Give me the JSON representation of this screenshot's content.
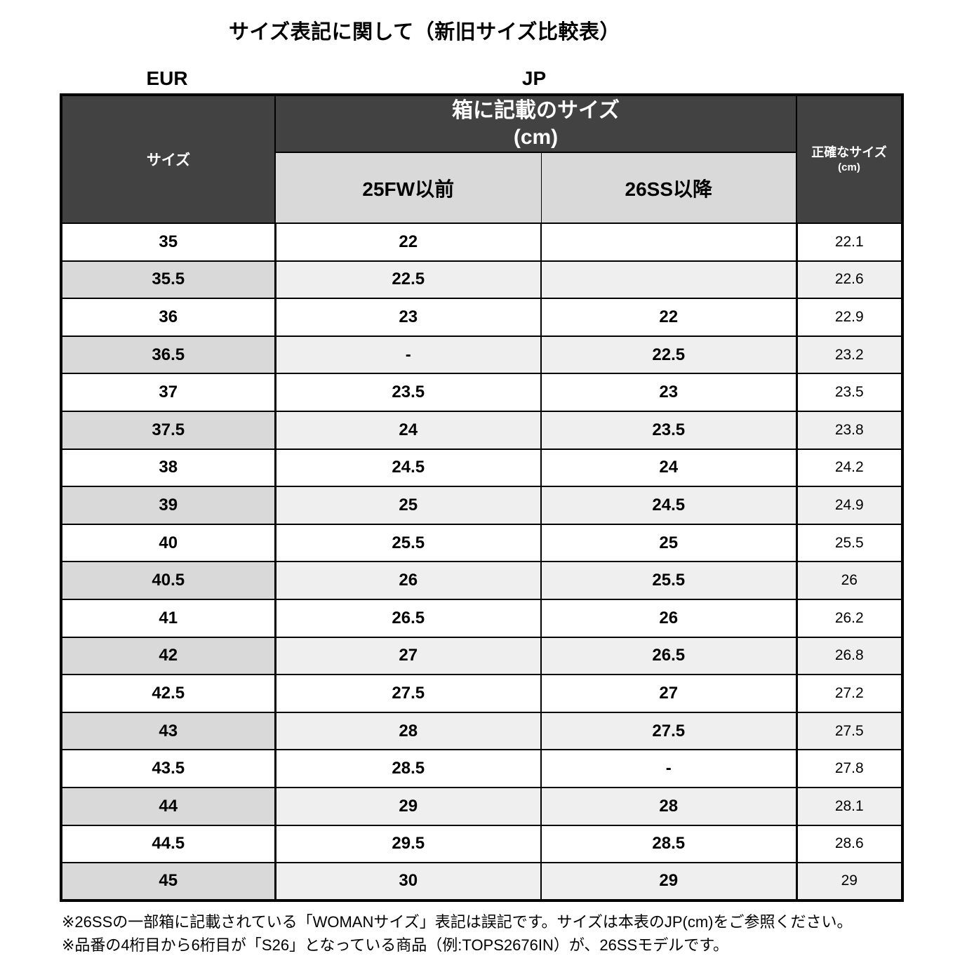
{
  "page": {
    "title": "サイズ表記に関して（新旧サイズ比較表）"
  },
  "group_labels": {
    "eur": "EUR",
    "jp": "JP"
  },
  "table": {
    "headers": {
      "size": "サイズ",
      "box_size_line1": "箱に記載のサイズ",
      "box_size_line2": "(cm)",
      "col_25fw": "25FW以前",
      "col_26ss": "26SS以降",
      "exact_line1": "正確なサイズ",
      "exact_line2": "(cm)"
    },
    "rows": [
      {
        "eur": "35",
        "fw25": "22",
        "ss26": "",
        "exact": "22.1"
      },
      {
        "eur": "35.5",
        "fw25": "22.5",
        "ss26": "",
        "exact": "22.6"
      },
      {
        "eur": "36",
        "fw25": "23",
        "ss26": "22",
        "exact": "22.9"
      },
      {
        "eur": "36.5",
        "fw25": "-",
        "ss26": "22.5",
        "exact": "23.2"
      },
      {
        "eur": "37",
        "fw25": "23.5",
        "ss26": "23",
        "exact": "23.5"
      },
      {
        "eur": "37.5",
        "fw25": "24",
        "ss26": "23.5",
        "exact": "23.8"
      },
      {
        "eur": "38",
        "fw25": "24.5",
        "ss26": "24",
        "exact": "24.2"
      },
      {
        "eur": "39",
        "fw25": "25",
        "ss26": "24.5",
        "exact": "24.9"
      },
      {
        "eur": "40",
        "fw25": "25.5",
        "ss26": "25",
        "exact": "25.5"
      },
      {
        "eur": "40.5",
        "fw25": "26",
        "ss26": "25.5",
        "exact": "26"
      },
      {
        "eur": "41",
        "fw25": "26.5",
        "ss26": "26",
        "exact": "26.2"
      },
      {
        "eur": "42",
        "fw25": "27",
        "ss26": "26.5",
        "exact": "26.8"
      },
      {
        "eur": "42.5",
        "fw25": "27.5",
        "ss26": "27",
        "exact": "27.2"
      },
      {
        "eur": "43",
        "fw25": "28",
        "ss26": "27.5",
        "exact": "27.5"
      },
      {
        "eur": "43.5",
        "fw25": "28.5",
        "ss26": "-",
        "exact": "27.8"
      },
      {
        "eur": "44",
        "fw25": "29",
        "ss26": "28",
        "exact": "28.1"
      },
      {
        "eur": "44.5",
        "fw25": "29.5",
        "ss26": "28.5",
        "exact": "28.6"
      },
      {
        "eur": "45",
        "fw25": "30",
        "ss26": "29",
        "exact": "29"
      }
    ]
  },
  "notes": [
    "※26SSの一部箱に記載されている「WOMANサイズ」表記は誤記です。サイズは本表のJP(cm)をご参照ください。",
    "※品番の4桁目から6桁目が「S26」となっている商品（例:TOPS2676IN）が、26SSモデルです。"
  ],
  "colors": {
    "header_dark": "#424242",
    "subheader_gray": "#d9d9d9",
    "row_alt_first_col": "#d9d9d9",
    "row_alt_other": "#efefef",
    "border": "#000000"
  }
}
